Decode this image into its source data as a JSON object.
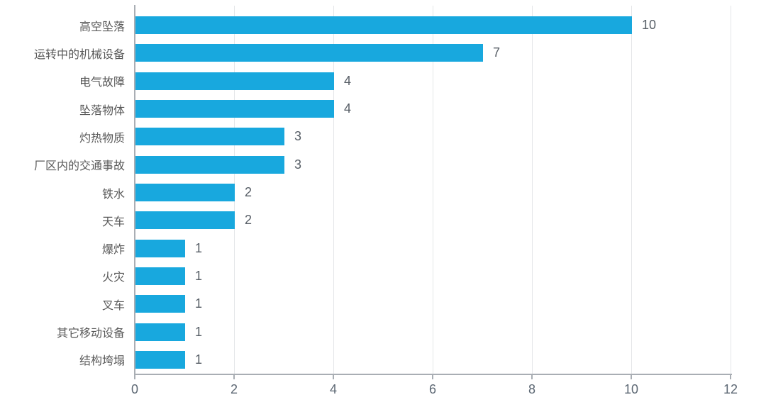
{
  "chart_data": {
    "type": "bar",
    "orientation": "horizontal",
    "title": "",
    "xlabel": "",
    "ylabel": "",
    "legend": "none",
    "grid": true,
    "categories": [
      "高空坠落",
      "运转中的机械设备",
      "电气故障",
      "坠落物体",
      "灼热物质",
      "厂区内的交通事故",
      "铁水",
      "天车",
      "爆炸",
      "火灾",
      "叉车",
      "其它移动设备",
      "结构垮塌"
    ],
    "values": [
      10,
      7,
      4,
      4,
      3,
      3,
      2,
      2,
      1,
      1,
      1,
      1,
      1
    ],
    "value_labels": [
      "10",
      "7",
      "4",
      "4",
      "3",
      "3",
      "2",
      "2",
      "1",
      "1",
      "1",
      "1",
      "1"
    ],
    "xlim": [
      0,
      12
    ],
    "xticks": [
      0,
      2,
      4,
      6,
      8,
      10,
      12
    ],
    "colors": {
      "bar": "#18A8DE",
      "category_label": "#595959",
      "value_label": "#575E66",
      "axis_line": "#A9AEB4",
      "gridline": "#E4E6E8",
      "tick_label": "#5C6773",
      "background": "#FFFFFF"
    }
  }
}
